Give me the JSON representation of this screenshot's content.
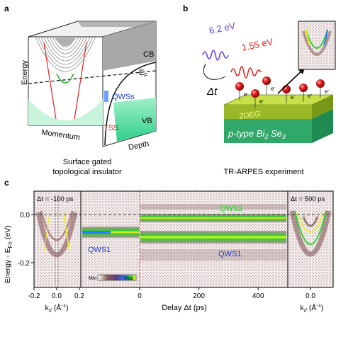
{
  "panel_labels": {
    "a": "a",
    "b": "b",
    "c": "c"
  },
  "panel_a": {
    "axis_energy": "Energy",
    "axis_momentum": "Momentum",
    "axis_depth": "Depth",
    "label_cb": "CB",
    "label_vb": "VB",
    "label_ef": "E",
    "label_ef_sub": "F",
    "label_qwss": "QWSs",
    "label_tss": "TSS",
    "caption_line1": "Surface gated",
    "caption_line2": "topological insulator",
    "colors": {
      "cb": "#9a9a9a",
      "vb": "#7ce6b4",
      "qws": "#1d3bd6",
      "tss": "#e02020",
      "qws_band": "#28b428"
    }
  },
  "panel_b": {
    "pump_label": "6.2 eV",
    "probe_label": "1.55 eV",
    "delay_label": "Δt",
    "electron_label": "e",
    "electron_sup": "-",
    "layer_2deg": "2DEG",
    "substrate_label": "p-type Bi",
    "substrate_sub1": "2",
    "substrate_mid": " Se",
    "substrate_sub2": "3",
    "caption": "TR-ARPES experiment",
    "colors": {
      "pump": "#6a3cf0",
      "probe": "#e02020",
      "layer": "#8fae1e",
      "substrate": "#2fa86a",
      "electron": "#d01010"
    }
  },
  "panel_c": {
    "y_label": "Energy - E",
    "y_label_sub": "Fn",
    "y_label_unit": " (eV)",
    "y_ticks": [
      "0.0",
      "-0.2"
    ],
    "left_title": "Δt = -100 ps",
    "right_title": "Δt = 500 ps",
    "left_x_ticks": [
      "-0.2",
      "0.0",
      "0.2"
    ],
    "right_x_ticks": [
      "0.0"
    ],
    "k_label": "k",
    "k_sub": "//",
    "k_unit": " (Å",
    "k_sup": "-1",
    "k_close": ")",
    "center_x_label": "Delay Δt (ps)",
    "center_x_ticks": [
      "0",
      "200",
      "400"
    ],
    "label_qws2": "QWS2",
    "label_qws1_left": "QWS1",
    "label_qws1_right": "QWS1",
    "colorbar_min": "Min",
    "colorbar_max": "Max",
    "colors": {
      "qws2": "#2ed62e",
      "qws1": "#1f3fd6",
      "axis": "#000000",
      "fermi_line": "#333333",
      "time_zero": "#e03030"
    }
  }
}
